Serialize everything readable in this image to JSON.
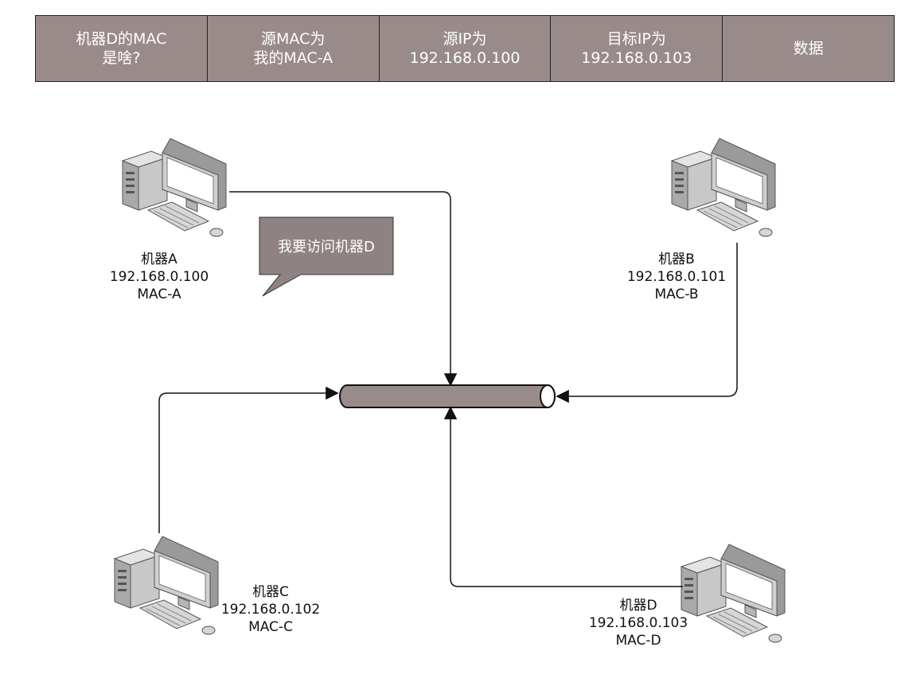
{
  "header_cells": [
    {
      "line1": "机器D的MAC",
      "line2": "是啥?"
    },
    {
      "line1": "源MAC为",
      "line2": "我的MAC-A"
    },
    {
      "line1": "源IP为",
      "line2": "192.168.0.100"
    },
    {
      "line1": "目标IP为",
      "line2": "192.168.0.103"
    },
    {
      "line1": "数据",
      "line2": ""
    }
  ],
  "machines": {
    "a": {
      "name": "机器A",
      "ip": "192.168.0.100",
      "mac": "MAC-A"
    },
    "b": {
      "name": "机器B",
      "ip": "192.168.0.101",
      "mac": "MAC-B"
    },
    "c": {
      "name": "机器C",
      "ip": "192.168.0.102",
      "mac": "MAC-C"
    },
    "d": {
      "name": "机器D",
      "ip": "192.168.0.103",
      "mac": "MAC-D"
    }
  },
  "speech_bubble": "我要访问机器D",
  "colors": {
    "header_fill": "#9a8b8b",
    "bus_fill": "#9a8b8b",
    "bubble_fill": "#8f8282"
  },
  "icons": [
    "desktop-computer-icon",
    "network-bus-icon"
  ]
}
